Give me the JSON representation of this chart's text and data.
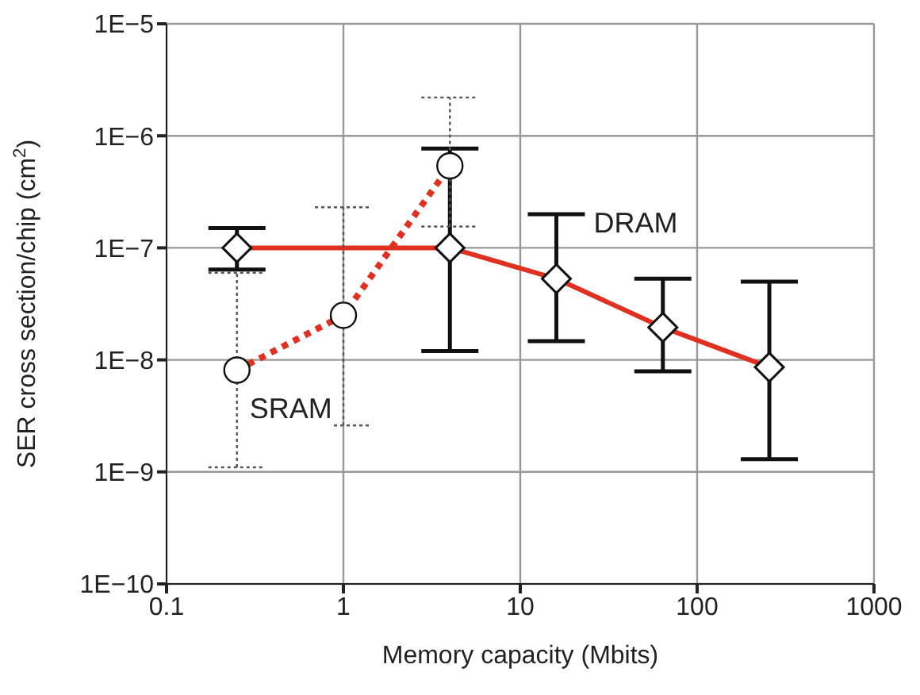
{
  "chart_data": {
    "type": "line",
    "xlabel": "Memory capacity (Mbits)",
    "ylabel": "SER cross section/chip (cm$^{2}$)",
    "log": "xy",
    "grid": true,
    "legend": false,
    "xlim": [
      0.1,
      1000
    ],
    "xticks": [
      0.1,
      1,
      10,
      100,
      1000
    ],
    "ylim": [
      1e-10,
      1e-05
    ],
    "yticks": [
      {
        "value": 1e-10,
        "label": "1E−10"
      },
      {
        "value": 1e-09,
        "label": "1E−9"
      },
      {
        "value": 1e-08,
        "label": "1E−8"
      },
      {
        "value": 1e-07,
        "label": "1E−7"
      },
      {
        "value": 1e-06,
        "label": "1E−6"
      },
      {
        "value": 1e-05,
        "label": "1E−5"
      }
    ],
    "series": [
      {
        "name": "DRAM",
        "color": "#e03020",
        "line_style": "solid",
        "marker": "diamond",
        "x": [
          0.25,
          4,
          16,
          64,
          256
        ],
        "values": [
          1e-07,
          1e-07,
          5.3e-08,
          1.95e-08,
          8.6e-09
        ],
        "errors": [
          [
            6.4e-08,
            1.5e-07
          ],
          [
            1.2e-08,
            7.7e-07
          ],
          [
            1.47e-08,
            2e-07
          ],
          [
            7.9e-09,
            5.3e-08
          ],
          [
            1.3e-09,
            5e-08
          ]
        ]
      },
      {
        "name": "SRAM",
        "color": "#e03020",
        "line_style": "dotted",
        "marker": "circle",
        "x": [
          0.25,
          1,
          4
        ],
        "values": [
          8.1e-09,
          2.5e-08,
          5.4e-07
        ],
        "errors": [
          [
            1.1e-09,
            6e-08
          ],
          [
            2.6e-09,
            2.3e-07
          ],
          [
            1.55e-07,
            2.2e-06
          ]
        ]
      }
    ]
  }
}
